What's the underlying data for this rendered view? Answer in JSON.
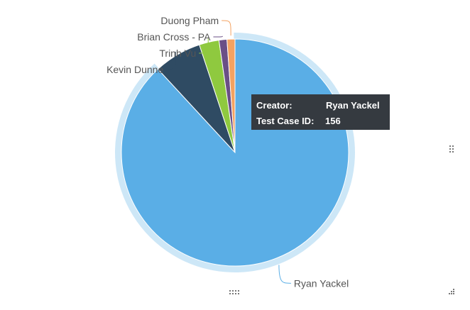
{
  "chart_data": {
    "type": "pie",
    "slices": [
      {
        "label": "Ryan Yackel",
        "value": 156,
        "color": "#5aaee6"
      },
      {
        "label": "Kevin Dunne",
        "value": 12,
        "color": "#2f4b63"
      },
      {
        "label": "Trinh Vu",
        "value": 5,
        "color": "#8fc93f"
      },
      {
        "label": "Brian Cross - PA",
        "value": 2,
        "color": "#6a4f86"
      },
      {
        "label": "Duong Pham",
        "value": 2,
        "color": "#f4a261"
      }
    ]
  },
  "tooltip": {
    "creator_key": "Creator:",
    "creator_value": "Ryan Yackel",
    "id_key": "Test Case ID:",
    "id_value": "156"
  }
}
